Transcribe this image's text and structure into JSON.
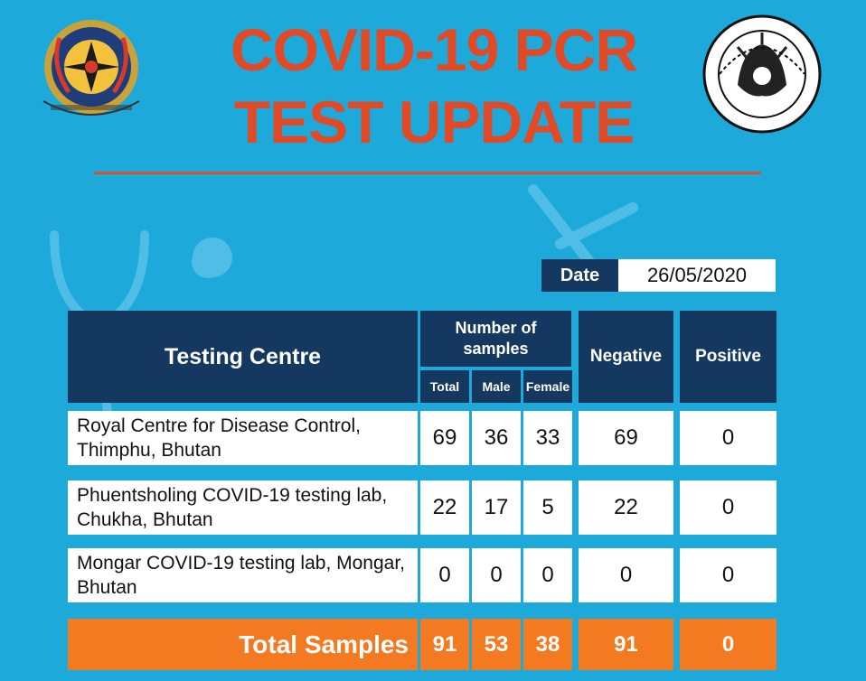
{
  "header": {
    "title_line1": "COVID-19 PCR",
    "title_line2": "TEST UPDATE"
  },
  "date": {
    "label": "Date",
    "value": "26/05/2020"
  },
  "table": {
    "headers": {
      "centre": "Testing Centre",
      "samples": "Number of samples",
      "total": "Total",
      "male": "Male",
      "female": "Female",
      "negative": "Negative",
      "positive": "Positive"
    },
    "rows": [
      {
        "centre": "Royal Centre for Disease Control, Thimphu, Bhutan",
        "total": "69",
        "male": "36",
        "female": "33",
        "negative": "69",
        "positive": "0"
      },
      {
        "centre": "Phuentsholing COVID-19 testing lab, Chukha, Bhutan",
        "total": "22",
        "male": "17",
        "female": "5",
        "negative": "22",
        "positive": "0"
      },
      {
        "centre": "Mongar COVID-19 testing lab, Mongar, Bhutan",
        "total": "0",
        "male": "0",
        "female": "0",
        "negative": "0",
        "positive": "0"
      }
    ],
    "totals": {
      "label": "Total Samples",
      "total": "91",
      "male": "53",
      "female": "38",
      "negative": "91",
      "positive": "0"
    }
  },
  "colors": {
    "background": "#1ea9db",
    "navy": "#14385f",
    "title": "#e04a26",
    "orange": "#f47a22"
  },
  "icons": [
    "royal-emblem-icon",
    "health-ministry-seal-icon",
    "stethoscope-icon",
    "syringe-icon"
  ]
}
